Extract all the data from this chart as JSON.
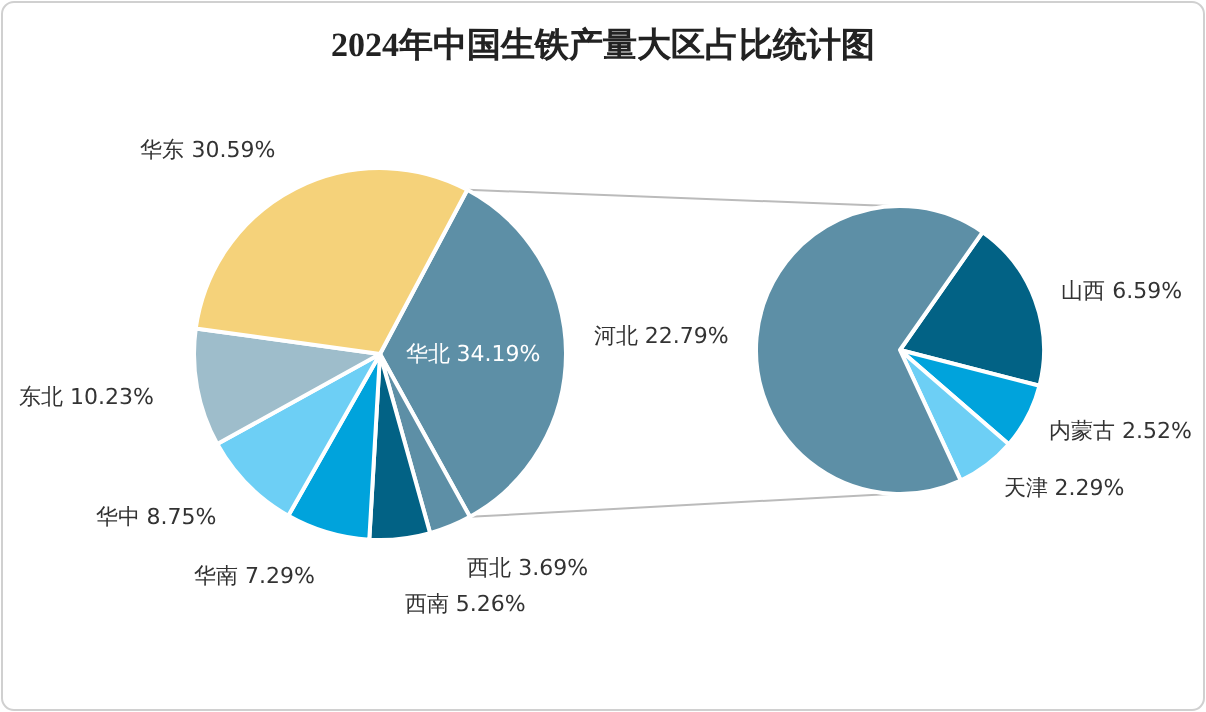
{
  "chart_data": [
    {
      "type": "pie",
      "title": "2024年中国生铁产量大区占比统计图",
      "categories": [
        "华北",
        "西北",
        "西南",
        "华南",
        "华中",
        "东北",
        "华东"
      ],
      "values": [
        34.19,
        3.69,
        5.26,
        7.29,
        8.75,
        10.23,
        30.59
      ],
      "value_labels": [
        "34.19%",
        "3.69%",
        "5.26%",
        "7.29%",
        "8.75%",
        "10.23%",
        "30.59%"
      ],
      "colors": [
        "#5d8fa6",
        "#5d8fa6",
        "#026285",
        "#00a3dc",
        "#6dcff5",
        "#9ebdcb",
        "#f5d27a"
      ]
    },
    {
      "type": "pie",
      "categories": [
        "山西",
        "内蒙古",
        "天津",
        "河北"
      ],
      "values": [
        6.59,
        2.52,
        2.29,
        22.79
      ],
      "value_labels": [
        "6.59%",
        "2.52%",
        "2.29%",
        "22.79%"
      ],
      "colors": [
        "#026285",
        "#00a3dc",
        "#6dcff5",
        "#5d8fa6"
      ]
    }
  ]
}
